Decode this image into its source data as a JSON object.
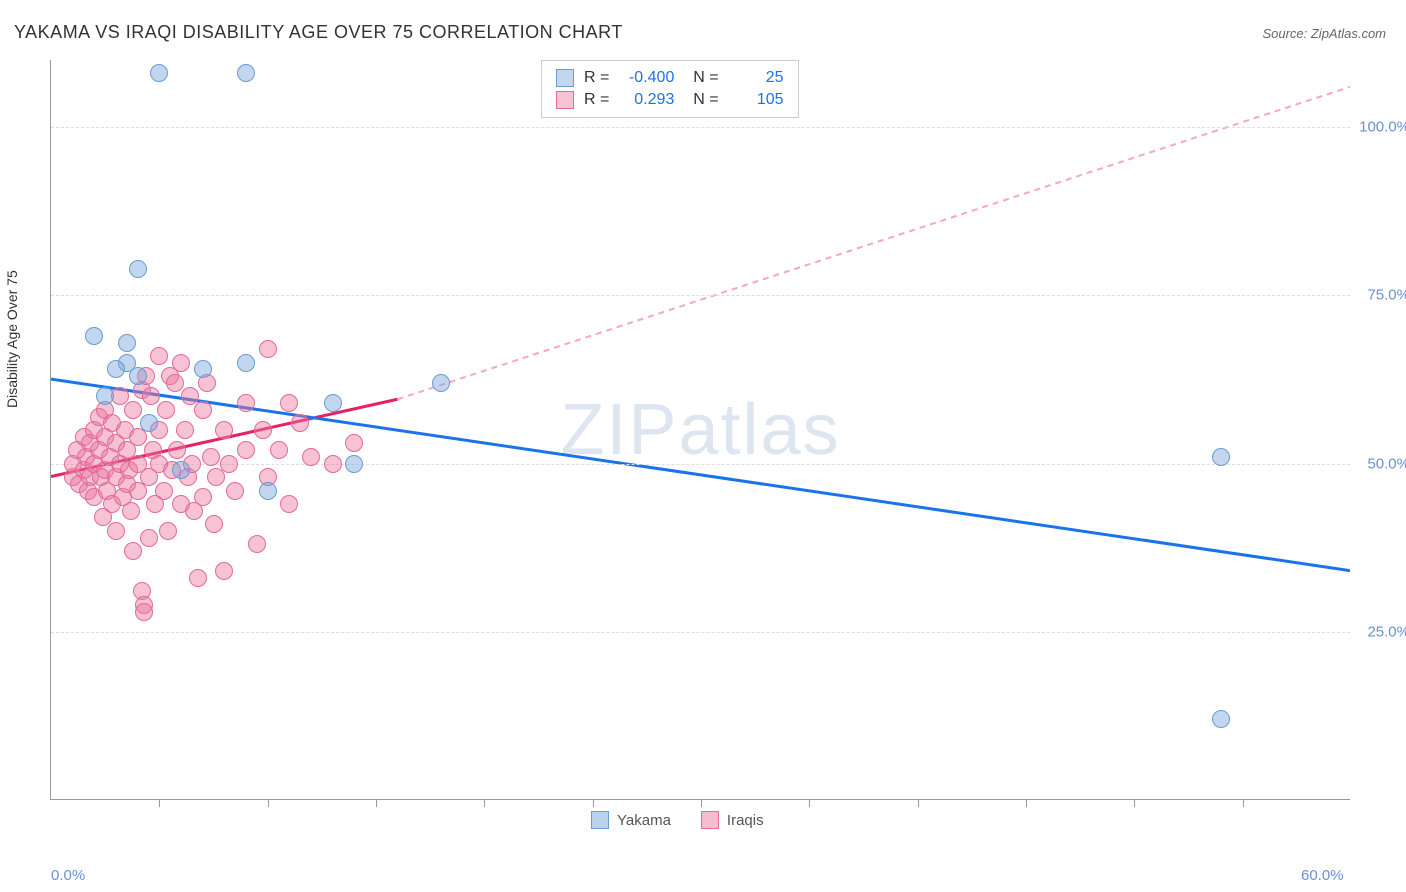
{
  "title": "YAKAMA VS IRAQI DISABILITY AGE OVER 75 CORRELATION CHART",
  "source_label": "Source: ZipAtlas.com",
  "ylabel": "Disability Age Over 75",
  "watermark_bold": "ZIP",
  "watermark_rest": "atlas",
  "chart": {
    "type": "scatter",
    "xlim": [
      0,
      60
    ],
    "ylim": [
      0,
      110
    ],
    "x_ticks_major": [
      0,
      60
    ],
    "x_ticks_minor": [
      5,
      10,
      15,
      20,
      25,
      30,
      35,
      40,
      45,
      50,
      55
    ],
    "x_tick_labels": [
      "0.0%",
      "60.0%"
    ],
    "y_grid": [
      25,
      50,
      75,
      100
    ],
    "y_tick_labels": [
      "25.0%",
      "50.0%",
      "75.0%",
      "100.0%"
    ],
    "background_color": "#ffffff",
    "grid_color": "#dddddd",
    "axis_color": "#999999",
    "point_radius": 9,
    "series": [
      {
        "name": "Yakama",
        "color_fill": "rgba(120,165,220,0.45)",
        "color_stroke": "#6a9bd1",
        "r_value": "-0.400",
        "n_value": "25",
        "trend": {
          "x1": 0,
          "y1": 62.5,
          "x2": 60,
          "y2": 34,
          "color": "#1a73e8",
          "width": 3,
          "dash": ""
        },
        "points": [
          [
            5,
            108
          ],
          [
            9,
            108
          ],
          [
            4,
            79
          ],
          [
            2,
            69
          ],
          [
            3.5,
            65
          ],
          [
            3,
            64
          ],
          [
            4,
            63
          ],
          [
            7,
            64
          ],
          [
            9,
            65
          ],
          [
            2.5,
            60
          ],
          [
            4.5,
            56
          ],
          [
            13,
            59
          ],
          [
            18,
            62
          ],
          [
            6,
            49
          ],
          [
            10,
            46
          ],
          [
            14,
            50
          ],
          [
            54,
            51
          ],
          [
            54,
            12
          ],
          [
            3.5,
            68
          ]
        ]
      },
      {
        "name": "Iraqis",
        "color_fill": "rgba(235,120,160,0.45)",
        "color_stroke": "#e06a98",
        "r_value": "0.293",
        "n_value": "105",
        "trend_solid": {
          "x1": 0,
          "y1": 48,
          "x2": 16,
          "y2": 59.5,
          "color": "#e91e63",
          "width": 3
        },
        "trend_dash": {
          "x1": 16,
          "y1": 59.5,
          "x2": 60,
          "y2": 106,
          "color": "#f8a5c2",
          "width": 2,
          "dash": "6,5"
        },
        "points": [
          [
            1,
            48
          ],
          [
            1,
            50
          ],
          [
            1.2,
            52
          ],
          [
            1.3,
            47
          ],
          [
            1.5,
            54
          ],
          [
            1.5,
            49
          ],
          [
            1.6,
            51
          ],
          [
            1.7,
            46
          ],
          [
            1.8,
            53
          ],
          [
            1.8,
            48
          ],
          [
            2,
            55
          ],
          [
            2,
            50
          ],
          [
            2,
            45
          ],
          [
            2.2,
            52
          ],
          [
            2.2,
            57
          ],
          [
            2.3,
            48
          ],
          [
            2.4,
            42
          ],
          [
            2.5,
            54
          ],
          [
            2.5,
            49
          ],
          [
            2.5,
            58
          ],
          [
            2.6,
            46
          ],
          [
            2.7,
            51
          ],
          [
            2.8,
            44
          ],
          [
            2.8,
            56
          ],
          [
            3,
            53
          ],
          [
            3,
            48
          ],
          [
            3,
            40
          ],
          [
            3.2,
            50
          ],
          [
            3.2,
            60
          ],
          [
            3.3,
            45
          ],
          [
            3.4,
            55
          ],
          [
            3.5,
            47
          ],
          [
            3.5,
            52
          ],
          [
            3.6,
            49
          ],
          [
            3.7,
            43
          ],
          [
            3.8,
            58
          ],
          [
            3.8,
            37
          ],
          [
            4,
            50
          ],
          [
            4,
            54
          ],
          [
            4,
            46
          ],
          [
            4.2,
            31
          ],
          [
            4.2,
            61
          ],
          [
            4.3,
            29
          ],
          [
            4.3,
            28
          ],
          [
            4.4,
            63
          ],
          [
            4.5,
            48
          ],
          [
            4.5,
            39
          ],
          [
            4.6,
            60
          ],
          [
            4.7,
            52
          ],
          [
            4.8,
            44
          ],
          [
            5,
            66
          ],
          [
            5,
            50
          ],
          [
            5,
            55
          ],
          [
            5.2,
            46
          ],
          [
            5.3,
            58
          ],
          [
            5.4,
            40
          ],
          [
            5.5,
            63
          ],
          [
            5.6,
            49
          ],
          [
            5.7,
            62
          ],
          [
            5.8,
            52
          ],
          [
            6,
            44
          ],
          [
            6,
            65
          ],
          [
            6.2,
            55
          ],
          [
            6.3,
            48
          ],
          [
            6.4,
            60
          ],
          [
            6.5,
            50
          ],
          [
            6.6,
            43
          ],
          [
            6.8,
            33
          ],
          [
            7,
            58
          ],
          [
            7,
            45
          ],
          [
            7.2,
            62
          ],
          [
            7.4,
            51
          ],
          [
            7.5,
            41
          ],
          [
            7.6,
            48
          ],
          [
            8,
            34
          ],
          [
            8,
            55
          ],
          [
            8.2,
            50
          ],
          [
            8.5,
            46
          ],
          [
            9,
            59
          ],
          [
            9,
            52
          ],
          [
            9.5,
            38
          ],
          [
            9.8,
            55
          ],
          [
            10,
            67
          ],
          [
            10,
            48
          ],
          [
            10.5,
            52
          ],
          [
            11,
            59
          ],
          [
            11,
            44
          ],
          [
            11.5,
            56
          ],
          [
            12,
            51
          ],
          [
            13,
            50
          ],
          [
            14,
            53
          ]
        ]
      }
    ],
    "legend_bottom": [
      {
        "label": "Yakama",
        "fill": "rgba(120,165,220,0.5)",
        "stroke": "#6a9bd1"
      },
      {
        "label": "Iraqis",
        "fill": "rgba(235,120,160,0.5)",
        "stroke": "#e06a98"
      }
    ]
  }
}
